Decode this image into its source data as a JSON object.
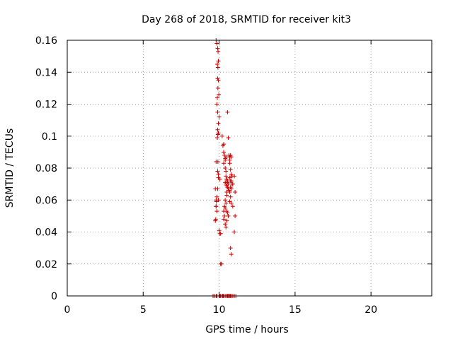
{
  "chart_data": {
    "type": "scatter",
    "title": "Day 268 of 2018, SRMTID for receiver kit3",
    "xlabel": "GPS time / hours",
    "ylabel": "SRMTID / TECUs",
    "xlim": [
      0,
      24
    ],
    "ylim": [
      0,
      0.16
    ],
    "xticks": [
      0,
      5,
      10,
      15,
      20
    ],
    "xtick_labels": [
      "0",
      "5",
      "10",
      "15",
      "20"
    ],
    "yticks": [
      0,
      0.02,
      0.04,
      0.06,
      0.08,
      0.1,
      0.12,
      0.14,
      0.16
    ],
    "ytick_labels": [
      "0",
      "0.02",
      "0.04",
      "0.06",
      "0.08",
      "0.1",
      "0.12",
      "0.14",
      "0.16"
    ],
    "grid": true,
    "marker": "plus",
    "color": "#cc0000",
    "series": [
      {
        "x": [
          9.8,
          9.85,
          9.9,
          9.93,
          9.95,
          9.88,
          9.92,
          9.9,
          9.95,
          9.92,
          9.88,
          9.98,
          9.85,
          9.9,
          10.0,
          9.95,
          9.9,
          9.92,
          9.88,
          9.95,
          9.8,
          9.92,
          9.9,
          9.95,
          9.95,
          10.05,
          9.9,
          9.75,
          9.85,
          9.8,
          9.95,
          9.82,
          9.8,
          9.8,
          9.85,
          9.78,
          9.75,
          10.0,
          10.05,
          10.1,
          10.1,
          10.15,
          10.2,
          10.25,
          10.3,
          10.3,
          10.35,
          10.3,
          10.4,
          10.4,
          10.45,
          10.45,
          10.5,
          10.55,
          10.6,
          10.5,
          10.55,
          10.6,
          10.65,
          10.4,
          10.45,
          10.5,
          10.5,
          10.4,
          10.45,
          10.35,
          10.4,
          10.5,
          10.55,
          10.6,
          10.3,
          10.35,
          10.3,
          10.4,
          10.5,
          10.45,
          10.55,
          10.6,
          10.65,
          10.7,
          10.75,
          10.7,
          10.8,
          10.7,
          10.75,
          10.8,
          10.85,
          10.7,
          10.75,
          10.8,
          10.85,
          10.9,
          10.75,
          10.8,
          10.7,
          10.75,
          10.7,
          10.8,
          10.9,
          11.0,
          11.05,
          11.05,
          11.0,
          10.4,
          10.45,
          10.5,
          10.55,
          10.75,
          10.8
        ],
        "y": [
          0.16,
          0.158,
          0.155,
          0.153,
          0.147,
          0.145,
          0.143,
          0.136,
          0.135,
          0.13,
          0.124,
          0.126,
          0.12,
          0.115,
          0.112,
          0.108,
          0.104,
          0.101,
          0.099,
          0.102,
          0.084,
          0.084,
          0.078,
          0.076,
          0.074,
          0.073,
          0.067,
          0.067,
          0.062,
          0.06,
          0.06,
          0.059,
          0.056,
          0.056,
          0.053,
          0.048,
          0.047,
          0.041,
          0.039,
          0.039,
          0.02,
          0.02,
          0.1,
          0.094,
          0.095,
          0.09,
          0.088,
          0.083,
          0.08,
          0.085,
          0.078,
          0.075,
          0.073,
          0.072,
          0.07,
          0.069,
          0.068,
          0.067,
          0.066,
          0.071,
          0.07,
          0.065,
          0.063,
          0.06,
          0.058,
          0.056,
          0.055,
          0.053,
          0.052,
          0.05,
          0.053,
          0.05,
          0.048,
          0.045,
          0.047,
          0.043,
          0.115,
          0.099,
          0.088,
          0.087,
          0.088,
          0.085,
          0.087,
          0.083,
          0.079,
          0.076,
          0.075,
          0.074,
          0.072,
          0.072,
          0.07,
          0.07,
          0.068,
          0.067,
          0.065,
          0.062,
          0.059,
          0.058,
          0.056,
          0.075,
          0.065,
          0.05,
          0.04,
          0.086,
          0.087,
          0.073,
          0.071,
          0.03,
          0.026
        ]
      },
      {
        "x": [
          9.6,
          9.7,
          9.8,
          9.85,
          10.0,
          10.05,
          10.1,
          10.2,
          10.25,
          10.3,
          10.4,
          10.5,
          10.55,
          10.6,
          10.7,
          10.75,
          10.8,
          10.9,
          11.0,
          11.1
        ],
        "y": [
          0,
          0,
          0,
          0,
          0,
          0,
          0,
          0,
          0,
          0,
          0,
          0,
          0,
          0,
          0,
          0,
          0,
          0,
          0,
          0
        ]
      }
    ]
  }
}
